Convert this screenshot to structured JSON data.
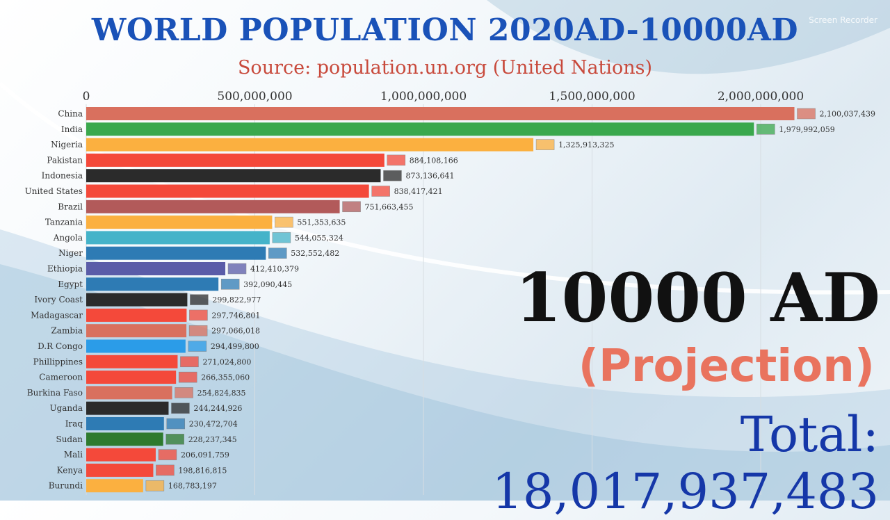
{
  "title": "WORLD POPULATION 2020AD-10000AD",
  "subtitle": "Source: population.un.org (United Nations)",
  "watermark": "Screen Recorder",
  "year_label": "10000 AD",
  "projection_label": "(Projection)",
  "total_label": "Total: 18,017,937,483",
  "chart_data": {
    "type": "bar",
    "orientation": "horizontal",
    "xlim": [
      0,
      2200000000
    ],
    "ticks": [
      0,
      500000000,
      1000000000,
      1500000000,
      2000000000
    ],
    "tick_labels": [
      "0",
      "500,000,000",
      "1,000,000,000",
      "1,500,000,000",
      "2,000,000,000"
    ],
    "grid": true,
    "categories": [
      "China",
      "India",
      "Nigeria",
      "Pakistan",
      "Indonesia",
      "United States",
      "Brazil",
      "Tanzania",
      "Angola",
      "Niger",
      "Ethiopia",
      "Egypt",
      "Ivory Coast",
      "Madagascar",
      "Zambia",
      "D.R Congo",
      "Phillippines",
      "Cameroon",
      "Burkina Faso",
      "Uganda",
      "Iraq",
      "Sudan",
      "Mali",
      "Kenya",
      "Burundi"
    ],
    "values": [
      2100037439,
      1979992059,
      1325913325,
      884108166,
      873136641,
      838417421,
      751663455,
      551353635,
      544055324,
      532552482,
      412410379,
      392090445,
      299822977,
      297746801,
      297066018,
      294499800,
      271024800,
      266355060,
      254824835,
      244244926,
      230472704,
      228237345,
      206091759,
      198816815,
      168783197
    ],
    "value_labels": [
      "2,100,037,439",
      "1,979,992,059",
      "1,325,913,325",
      "884,108,166",
      "873,136,641",
      "838,417,421",
      "751,663,455",
      "551,353,635",
      "544,055,324",
      "532,552,482",
      "412,410,379",
      "392,090,445",
      "299,822,977",
      "297,746,801",
      "297,066,018",
      "294,499,800",
      "271,024,800",
      "266,355,060",
      "254,824,835",
      "244,244,926",
      "230,472,704",
      "228,237,345",
      "206,091,759",
      "198,816,815",
      "168,783,197"
    ],
    "colors": [
      "#d9705e",
      "#3aa84d",
      "#fbb040",
      "#f4493a",
      "#2b2b2b",
      "#f4493a",
      "#b25a5a",
      "#fbb040",
      "#45b3c9",
      "#2e7bb4",
      "#5a5ca8",
      "#2e7bb4",
      "#2b2b2b",
      "#f4493a",
      "#d9705e",
      "#2b9ce8",
      "#f4493a",
      "#f4493a",
      "#d9705e",
      "#2b2b2b",
      "#2e7bb4",
      "#2e7a2e",
      "#f4493a",
      "#f4493a",
      "#fbb040"
    ]
  }
}
